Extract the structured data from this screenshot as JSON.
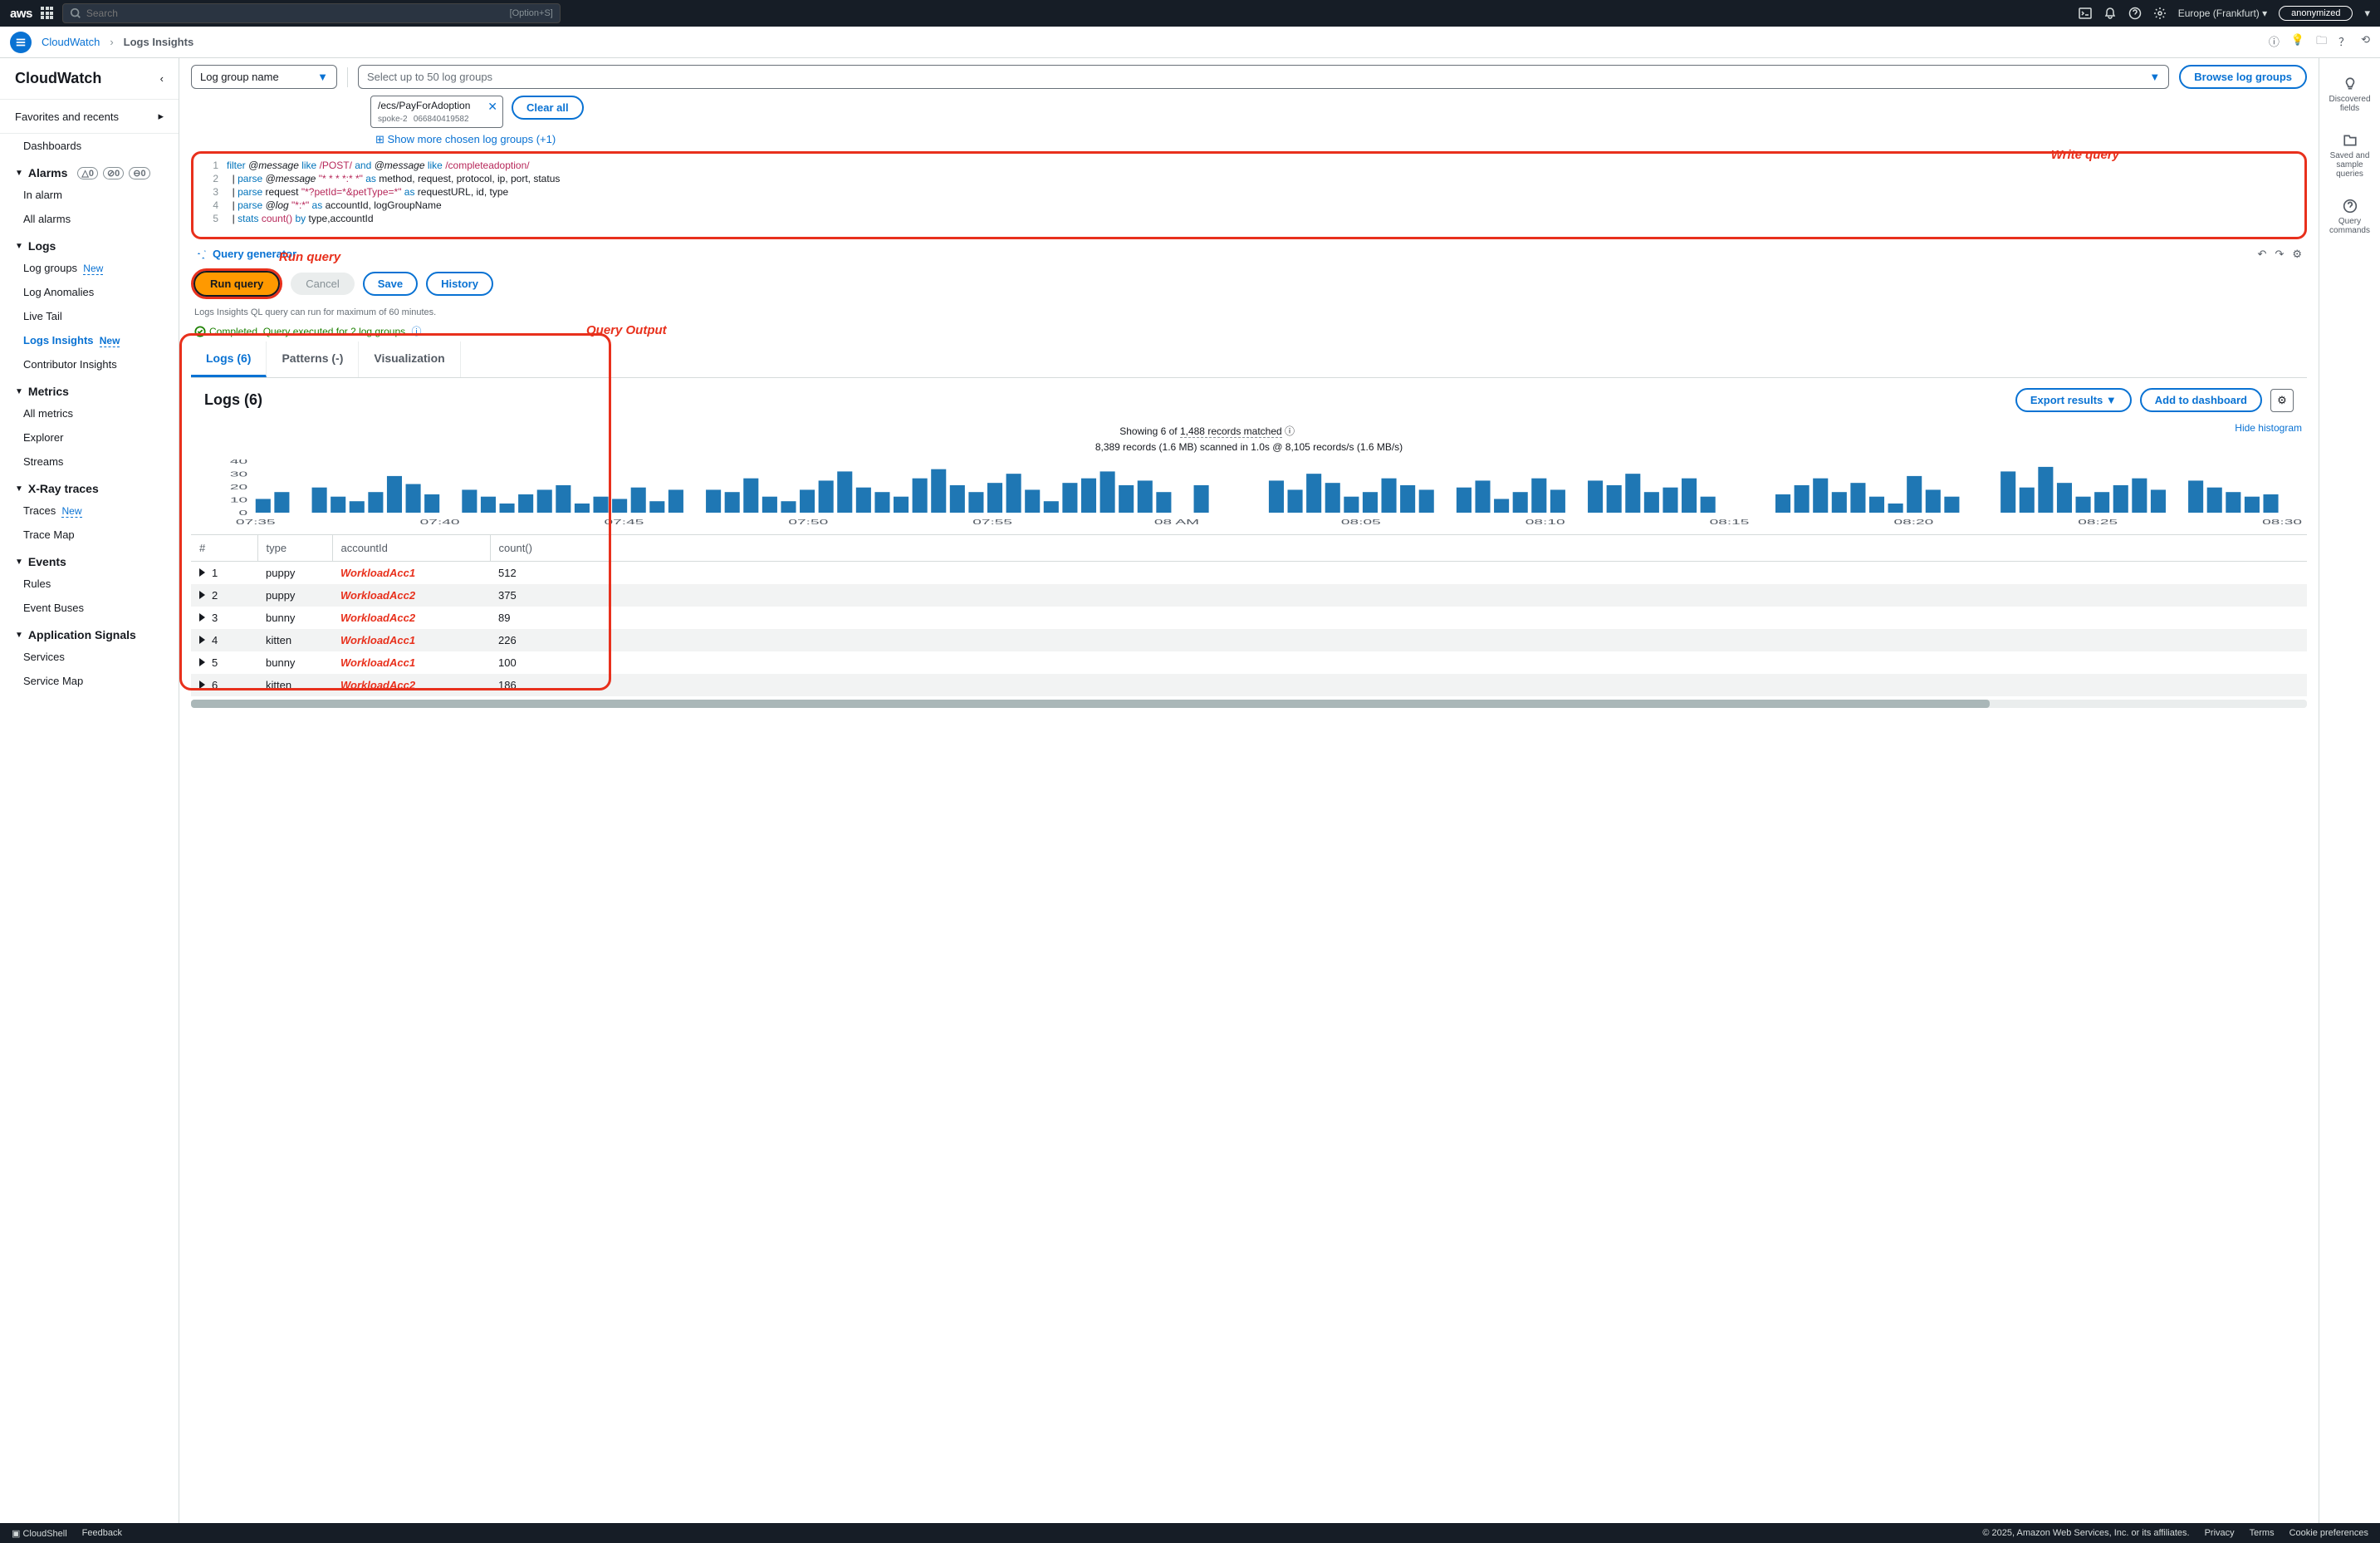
{
  "topbar": {
    "logo": "aws",
    "search_placeholder": "Search",
    "search_hint": "[Option+S]",
    "region": "Europe (Frankfurt)",
    "user": "anonymized"
  },
  "breadcrumb": {
    "service": "CloudWatch",
    "page": "Logs Insights"
  },
  "sidebar": {
    "title": "CloudWatch",
    "favorites": "Favorites and recents",
    "items": [
      {
        "type": "item",
        "label": "Dashboards"
      },
      {
        "type": "section",
        "label": "Alarms",
        "badges": true
      },
      {
        "type": "item",
        "label": "In alarm"
      },
      {
        "type": "item",
        "label": "All alarms"
      },
      {
        "type": "section",
        "label": "Logs"
      },
      {
        "type": "item",
        "label": "Log groups",
        "new": true
      },
      {
        "type": "item",
        "label": "Log Anomalies"
      },
      {
        "type": "item",
        "label": "Live Tail"
      },
      {
        "type": "item",
        "label": "Logs Insights",
        "new": true,
        "active": true
      },
      {
        "type": "item",
        "label": "Contributor Insights"
      },
      {
        "type": "section",
        "label": "Metrics"
      },
      {
        "type": "item",
        "label": "All metrics"
      },
      {
        "type": "item",
        "label": "Explorer"
      },
      {
        "type": "item",
        "label": "Streams"
      },
      {
        "type": "section",
        "label": "X-Ray traces"
      },
      {
        "type": "item",
        "label": "Traces",
        "new": true
      },
      {
        "type": "item",
        "label": "Trace Map"
      },
      {
        "type": "section",
        "label": "Events"
      },
      {
        "type": "item",
        "label": "Rules"
      },
      {
        "type": "item",
        "label": "Event Buses"
      },
      {
        "type": "section",
        "label": "Application Signals"
      },
      {
        "type": "item",
        "label": "Services"
      },
      {
        "type": "item",
        "label": "Service Map"
      }
    ],
    "alarm_badges": [
      "0",
      "0",
      "0"
    ]
  },
  "log_select": {
    "by_label": "Log group name",
    "placeholder": "Select up to 50 log groups",
    "browse": "Browse log groups",
    "chip_title": "/ecs/PayForAdoption",
    "chip_sub1": "spoke-2",
    "chip_sub2": "066840419582",
    "clear_all": "Clear all",
    "show_more": "Show more chosen log groups (+1)"
  },
  "query": {
    "lines": [
      {
        "n": "1",
        "prefix": "",
        "parts": [
          {
            "t": "filter ",
            "c": "kw"
          },
          {
            "t": "@message",
            "c": "var"
          },
          {
            "t": " like ",
            "c": "kw"
          },
          {
            "t": "/POST/",
            "c": "str"
          },
          {
            "t": " and ",
            "c": "kw"
          },
          {
            "t": "@message",
            "c": "var"
          },
          {
            "t": " like ",
            "c": "kw"
          },
          {
            "t": "/completeadoption/",
            "c": "str"
          }
        ]
      },
      {
        "n": "2",
        "prefix": "  | ",
        "parts": [
          {
            "t": "parse ",
            "c": "kw"
          },
          {
            "t": "@message",
            "c": "var"
          },
          {
            "t": " \"* * * *:* *\"",
            "c": "str"
          },
          {
            "t": " as ",
            "c": "kw"
          },
          {
            "t": "method, request, protocol, ip, port, status",
            "c": ""
          }
        ]
      },
      {
        "n": "3",
        "prefix": "  | ",
        "parts": [
          {
            "t": "parse ",
            "c": "kw"
          },
          {
            "t": "request ",
            "c": ""
          },
          {
            "t": "\"*?petId=*&petType=*\"",
            "c": "str"
          },
          {
            "t": " as ",
            "c": "kw"
          },
          {
            "t": "requestURL, id, type",
            "c": ""
          }
        ]
      },
      {
        "n": "4",
        "prefix": "  | ",
        "parts": [
          {
            "t": "parse ",
            "c": "kw"
          },
          {
            "t": "@log",
            "c": "var"
          },
          {
            "t": " \"*:*\"",
            "c": "str"
          },
          {
            "t": " as ",
            "c": "kw"
          },
          {
            "t": "accountId, logGroupName",
            "c": ""
          }
        ]
      },
      {
        "n": "5",
        "prefix": "  | ",
        "parts": [
          {
            "t": "stats ",
            "c": "kw"
          },
          {
            "t": "count()",
            "c": "str"
          },
          {
            "t": " by ",
            "c": "kw"
          },
          {
            "t": "type,accountId",
            "c": ""
          }
        ]
      }
    ],
    "generator": "Query generator",
    "run": "Run query",
    "cancel": "Cancel",
    "save": "Save",
    "history": "History",
    "hint": "Logs Insights QL query can run for maximum of 60 minutes.",
    "complete": "Completed. Query executed for 2 log groups."
  },
  "annotations": {
    "write": "Write query",
    "run": "Run query",
    "output": "Query Output"
  },
  "tabs": {
    "logs": "Logs (6)",
    "patterns": "Patterns (-)",
    "viz": "Visualization"
  },
  "results": {
    "heading": "Logs (6)",
    "export": "Export results",
    "add_dash": "Add to dashboard",
    "summary1_a": "Showing 6 of ",
    "summary1_b": "1,488 records matched",
    "summary2": "8,389 records (1.6 MB) scanned in 1.0s @ 8,105 records/s (1.6 MB/s)",
    "hide_hist": "Hide histogram",
    "columns": [
      "#",
      "type",
      "accountId",
      "count()"
    ],
    "rows": [
      {
        "n": "1",
        "type": "puppy",
        "acc": "WorkloadAcc1",
        "count": "512"
      },
      {
        "n": "2",
        "type": "puppy",
        "acc": "WorkloadAcc2",
        "count": "375"
      },
      {
        "n": "3",
        "type": "bunny",
        "acc": "WorkloadAcc2",
        "count": "89"
      },
      {
        "n": "4",
        "type": "kitten",
        "acc": "WorkloadAcc1",
        "count": "226"
      },
      {
        "n": "5",
        "type": "bunny",
        "acc": "WorkloadAcc1",
        "count": "100"
      },
      {
        "n": "6",
        "type": "kitten",
        "acc": "WorkloadAcc2",
        "count": "186"
      }
    ]
  },
  "chart": {
    "y_ticks": [
      "40",
      "30",
      "20",
      "10",
      "0"
    ],
    "x_ticks": [
      "07:35",
      "07:40",
      "07:45",
      "07:50",
      "07:55",
      "08 AM",
      "08:05",
      "08:10",
      "08:15",
      "08:20",
      "08:25",
      "08:30"
    ],
    "bar_color": "#1f77b4",
    "ymax": 45,
    "bars": [
      12,
      18,
      0,
      22,
      14,
      10,
      18,
      32,
      25,
      16,
      0,
      20,
      14,
      8,
      16,
      20,
      24,
      8,
      14,
      12,
      22,
      10,
      20,
      0,
      20,
      18,
      30,
      14,
      10,
      20,
      28,
      36,
      22,
      18,
      14,
      30,
      38,
      24,
      18,
      26,
      34,
      20,
      10,
      26,
      30,
      36,
      24,
      28,
      18,
      0,
      24,
      0,
      0,
      0,
      28,
      20,
      34,
      26,
      14,
      18,
      30,
      24,
      20,
      0,
      22,
      28,
      12,
      18,
      30,
      20,
      0,
      28,
      24,
      34,
      18,
      22,
      30,
      14,
      0,
      0,
      0,
      16,
      24,
      30,
      18,
      26,
      14,
      8,
      32,
      20,
      14,
      0,
      0,
      36,
      22,
      40,
      26,
      14,
      18,
      24,
      30,
      20,
      0,
      28,
      22,
      18,
      14,
      16
    ]
  },
  "right_rail": {
    "discovered": "Discovered fields",
    "saved": "Saved and sample queries",
    "commands": "Query commands"
  },
  "footoolbar": {
    "undo": "↶",
    "redo": "↷",
    "gear": "⚙"
  },
  "footer": {
    "cloudshell": "CloudShell",
    "feedback": "Feedback",
    "copyright": "© 2025, Amazon Web Services, Inc. or its affiliates.",
    "privacy": "Privacy",
    "terms": "Terms",
    "cookies": "Cookie preferences"
  }
}
